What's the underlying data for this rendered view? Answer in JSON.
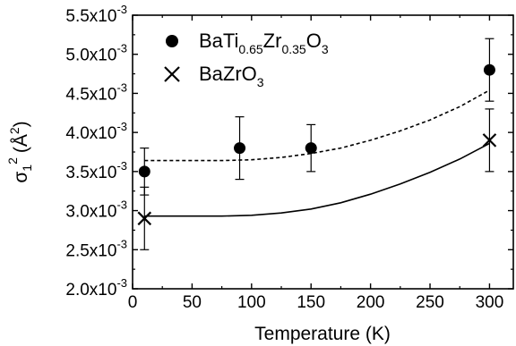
{
  "chart_data": {
    "type": "scatter",
    "title": "",
    "xlabel": "Temperature (K)",
    "ylabel": {
      "symbol": "σ",
      "subscript": "1",
      "superscript": "2",
      "unit": "(Å",
      "unit_sup": "2",
      "unit_close": ")"
    },
    "xlim": [
      0,
      320
    ],
    "ylim": [
      0.002,
      0.0055
    ],
    "x_ticks": [
      0,
      50,
      100,
      150,
      200,
      250,
      300
    ],
    "x_tick_labels": [
      "0",
      "50",
      "100",
      "150",
      "200",
      "250",
      "300"
    ],
    "y_ticks": [
      0.002,
      0.0025,
      0.003,
      0.0035,
      0.004,
      0.0045,
      0.005,
      0.0055
    ],
    "y_tick_labels": [
      {
        "mantissa": "2.0x10",
        "exp": "-3"
      },
      {
        "mantissa": "2.5x10",
        "exp": "-3"
      },
      {
        "mantissa": "3.0x10",
        "exp": "-3"
      },
      {
        "mantissa": "3.5x10",
        "exp": "-3"
      },
      {
        "mantissa": "4.0x10",
        "exp": "-3"
      },
      {
        "mantissa": "4.5x10",
        "exp": "-3"
      },
      {
        "mantissa": "5.0x10",
        "exp": "-3"
      },
      {
        "mantissa": "5.5x10",
        "exp": "-3"
      }
    ],
    "grid": false,
    "legend_position": "top-left",
    "series": [
      {
        "legend": [
          {
            "text": "BaTi"
          },
          {
            "text": "0.65",
            "sub": true
          },
          {
            "text": "Zr"
          },
          {
            "text": "0.35",
            "sub": true
          },
          {
            "text": "O"
          },
          {
            "text": "3",
            "sub": true
          }
        ],
        "marker": "circle",
        "x": [
          10,
          90,
          150,
          300
        ],
        "y": [
          0.0035,
          0.0038,
          0.0038,
          0.0048
        ],
        "yerr_low": [
          0.0032,
          0.0034,
          0.0035,
          0.0044
        ],
        "yerr_high": [
          0.0038,
          0.0042,
          0.0041,
          0.0052
        ],
        "fit_line": "dashed",
        "fit_x": [
          10,
          50,
          75,
          100,
          125,
          150,
          175,
          200,
          225,
          250,
          275,
          300
        ],
        "fit_y": [
          0.00364,
          0.00364,
          0.00364,
          0.00365,
          0.00368,
          0.00373,
          0.0038,
          0.0039,
          0.00402,
          0.00416,
          0.00433,
          0.00454
        ]
      },
      {
        "legend": [
          {
            "text": "BaZrO"
          },
          {
            "text": "3",
            "sub": true
          }
        ],
        "marker": "x",
        "x": [
          10,
          300
        ],
        "y": [
          0.0029,
          0.0039
        ],
        "yerr_low": [
          0.0025,
          0.0035
        ],
        "yerr_high": [
          0.0033,
          0.0043
        ],
        "fit_line": "solid",
        "fit_x": [
          10,
          50,
          75,
          100,
          125,
          150,
          175,
          200,
          225,
          250,
          275,
          300
        ],
        "fit_y": [
          0.00293,
          0.00293,
          0.00293,
          0.00294,
          0.00297,
          0.00302,
          0.0031,
          0.00321,
          0.00334,
          0.00349,
          0.00366,
          0.00386
        ]
      }
    ]
  }
}
